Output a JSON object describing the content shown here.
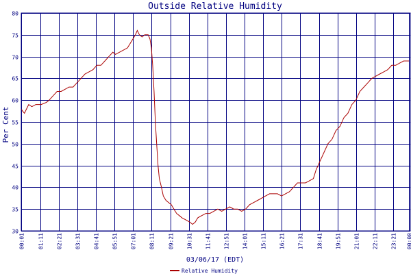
{
  "chart_data": {
    "type": "line",
    "title": "Outside Relative Humidity",
    "ylabel": "Per Cent",
    "xlabel": "03/06/17 (EDT)",
    "ylim": [
      30,
      80
    ],
    "yticks": [
      30,
      35,
      40,
      45,
      50,
      55,
      60,
      65,
      70,
      75,
      80
    ],
    "xlim_minutes": [
      0,
      1465
    ],
    "xticks": [
      {
        "label": "00:01",
        "min": 1
      },
      {
        "label": "01:11",
        "min": 71
      },
      {
        "label": "02:21",
        "min": 141
      },
      {
        "label": "03:31",
        "min": 211
      },
      {
        "label": "04:41",
        "min": 281
      },
      {
        "label": "05:51",
        "min": 351
      },
      {
        "label": "07:01",
        "min": 421
      },
      {
        "label": "08:11",
        "min": 491
      },
      {
        "label": "09:21",
        "min": 561
      },
      {
        "label": "10:31",
        "min": 631
      },
      {
        "label": "11:41",
        "min": 701
      },
      {
        "label": "12:51",
        "min": 771
      },
      {
        "label": "14:01",
        "min": 841
      },
      {
        "label": "15:11",
        "min": 911
      },
      {
        "label": "16:21",
        "min": 981
      },
      {
        "label": "17:31",
        "min": 1051
      },
      {
        "label": "18:41",
        "min": 1121
      },
      {
        "label": "19:51",
        "min": 1191
      },
      {
        "label": "21:01",
        "min": 1261
      },
      {
        "label": "22:11",
        "min": 1331
      },
      {
        "label": "23:21",
        "min": 1401
      },
      {
        "label": "00:00",
        "min": 1460
      }
    ],
    "series": [
      {
        "name": "Relative Humidity",
        "color": "#aa0000",
        "points": [
          [
            0,
            58
          ],
          [
            5,
            57.5
          ],
          [
            12,
            57
          ],
          [
            20,
            58
          ],
          [
            28,
            59
          ],
          [
            40,
            58.5
          ],
          [
            55,
            59
          ],
          [
            75,
            59
          ],
          [
            95,
            59.5
          ],
          [
            105,
            60
          ],
          [
            120,
            61
          ],
          [
            135,
            62
          ],
          [
            150,
            62
          ],
          [
            165,
            62.5
          ],
          [
            180,
            63
          ],
          [
            195,
            63
          ],
          [
            210,
            64
          ],
          [
            225,
            65
          ],
          [
            240,
            66
          ],
          [
            255,
            66.5
          ],
          [
            270,
            67
          ],
          [
            285,
            68
          ],
          [
            300,
            68
          ],
          [
            315,
            69
          ],
          [
            330,
            70
          ],
          [
            345,
            71
          ],
          [
            355,
            70.5
          ],
          [
            370,
            71
          ],
          [
            385,
            71.5
          ],
          [
            400,
            72
          ],
          [
            410,
            73
          ],
          [
            420,
            74
          ],
          [
            430,
            75
          ],
          [
            437,
            76
          ],
          [
            445,
            75
          ],
          [
            455,
            74.5
          ],
          [
            465,
            75
          ],
          [
            478,
            75
          ],
          [
            485,
            74
          ],
          [
            490,
            72
          ],
          [
            495,
            68
          ],
          [
            500,
            62
          ],
          [
            505,
            55
          ],
          [
            510,
            50
          ],
          [
            515,
            45
          ],
          [
            520,
            42
          ],
          [
            528,
            40
          ],
          [
            535,
            38
          ],
          [
            545,
            37
          ],
          [
            555,
            36.5
          ],
          [
            565,
            36
          ],
          [
            575,
            35
          ],
          [
            585,
            34
          ],
          [
            595,
            33.5
          ],
          [
            605,
            33
          ],
          [
            620,
            32.5
          ],
          [
            635,
            32
          ],
          [
            645,
            31.5
          ],
          [
            655,
            32
          ],
          [
            665,
            33
          ],
          [
            680,
            33.5
          ],
          [
            695,
            34
          ],
          [
            710,
            34
          ],
          [
            725,
            34.5
          ],
          [
            740,
            35
          ],
          [
            755,
            34.5
          ],
          [
            770,
            35
          ],
          [
            785,
            35.5
          ],
          [
            800,
            35
          ],
          [
            815,
            35
          ],
          [
            830,
            34.5
          ],
          [
            845,
            35
          ],
          [
            860,
            36
          ],
          [
            875,
            36.5
          ],
          [
            890,
            37
          ],
          [
            905,
            37.5
          ],
          [
            920,
            38
          ],
          [
            935,
            38.5
          ],
          [
            950,
            38.5
          ],
          [
            965,
            38.5
          ],
          [
            980,
            38
          ],
          [
            995,
            38.5
          ],
          [
            1010,
            39
          ],
          [
            1025,
            40
          ],
          [
            1040,
            41
          ],
          [
            1055,
            41
          ],
          [
            1070,
            41
          ],
          [
            1085,
            41.5
          ],
          [
            1100,
            42
          ],
          [
            1110,
            44
          ],
          [
            1125,
            46
          ],
          [
            1140,
            48
          ],
          [
            1155,
            50
          ],
          [
            1170,
            51
          ],
          [
            1185,
            53
          ],
          [
            1200,
            54
          ],
          [
            1215,
            56
          ],
          [
            1230,
            57
          ],
          [
            1245,
            59
          ],
          [
            1260,
            60
          ],
          [
            1275,
            62
          ],
          [
            1290,
            63
          ],
          [
            1305,
            64
          ],
          [
            1320,
            65
          ],
          [
            1335,
            65.5
          ],
          [
            1350,
            66
          ],
          [
            1365,
            66.5
          ],
          [
            1380,
            67
          ],
          [
            1395,
            68
          ],
          [
            1410,
            68
          ],
          [
            1425,
            68.5
          ],
          [
            1440,
            69
          ],
          [
            1455,
            69
          ],
          [
            1460,
            69
          ]
        ]
      }
    ]
  }
}
